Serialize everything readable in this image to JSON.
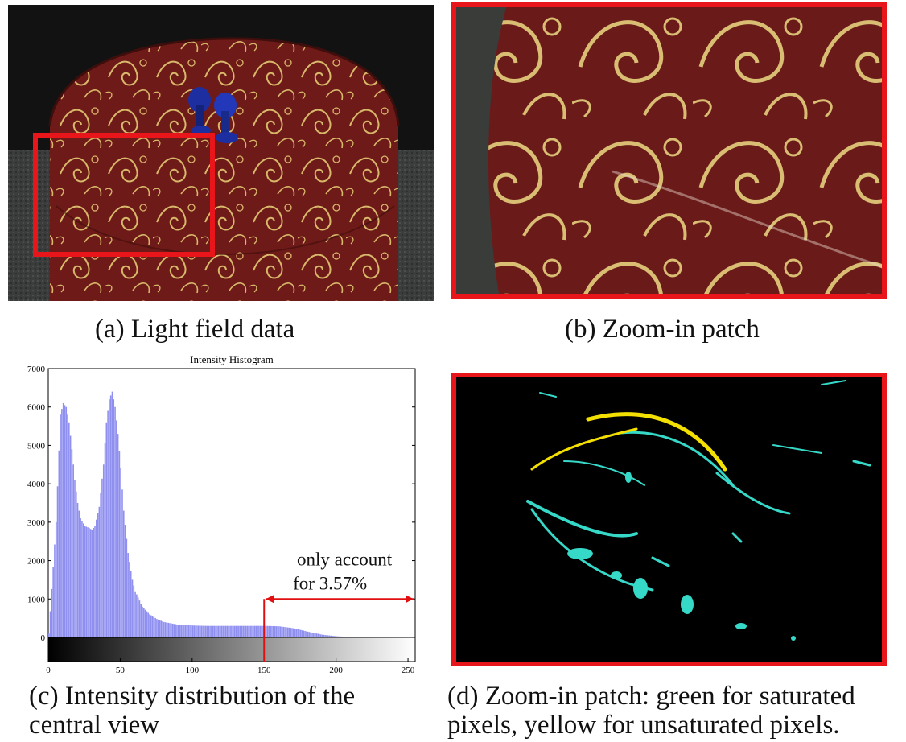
{
  "captions": {
    "a": "(a) Light field data",
    "b": "(b) Zoom-in patch",
    "c_line1": "(c) Intensity distribution of the",
    "c_line2": "central view",
    "d_line1": "(d) Zoom-in patch: green for saturated",
    "d_line2": "pixels, yellow for unsaturated pixels."
  },
  "colors": {
    "highlight_box": "#e8161b",
    "bars": "#8f8ff0",
    "annotation": "#e01010",
    "saturated": "#36d8c8",
    "unsaturated": "#f4e000"
  },
  "chart_data": {
    "type": "bar",
    "title": "Intensity Histogram",
    "xlabel": "",
    "ylabel": "",
    "xlim": [
      0,
      255
    ],
    "ylim": [
      0,
      7000
    ],
    "xticks": [
      0,
      50,
      100,
      150,
      200,
      250
    ],
    "yticks": [
      0,
      1000,
      2000,
      3000,
      4000,
      5000,
      6000,
      7000
    ],
    "grid": false,
    "colorbar": "grayscale",
    "series": [
      {
        "x": [
          0,
          5,
          8,
          10,
          12,
          14,
          16,
          18,
          20,
          22,
          25,
          28,
          30,
          32,
          35,
          38,
          40,
          42,
          44,
          46,
          48,
          50,
          52,
          55,
          58,
          60,
          65,
          70,
          75,
          80,
          90,
          100,
          110,
          120,
          130,
          140,
          150,
          160,
          170,
          180,
          190,
          200,
          210,
          220,
          230,
          240,
          250
        ],
        "values": [
          100,
          3000,
          5800,
          6100,
          6000,
          5600,
          4900,
          4100,
          3500,
          3100,
          2900,
          2850,
          2800,
          2900,
          3400,
          4500,
          5600,
          6200,
          6400,
          6000,
          5300,
          4400,
          3300,
          2200,
          1500,
          1200,
          800,
          600,
          480,
          400,
          330,
          310,
          300,
          300,
          300,
          300,
          300,
          290,
          240,
          150,
          70,
          30,
          10,
          5,
          0,
          0,
          0
        ]
      }
    ],
    "annotations": [
      {
        "text_line1": "only account",
        "text_line2": "for 3.57%",
        "x_start": 150,
        "x_end": 255,
        "y": 1000
      }
    ]
  }
}
